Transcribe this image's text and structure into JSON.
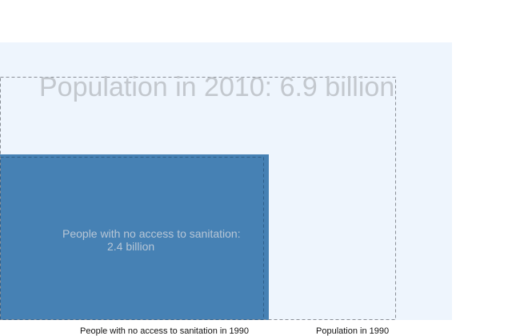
{
  "chart_data": {
    "type": "area",
    "title": "Population in 2010: 6.9 billion",
    "areas": [
      {
        "name": "Population in 2010",
        "value": 6.9,
        "unit": "billion",
        "color": "#eef5fd"
      },
      {
        "name": "Population in 1990",
        "value": 5.3,
        "unit": "billion",
        "style": "dashed-outline"
      },
      {
        "name": "People with no access to sanitation in 2010",
        "value": 2.4,
        "unit": "billion",
        "color": "#4681b4"
      },
      {
        "name": "People with no access to sanitation in 1990",
        "value": 2.7,
        "unit": "billion",
        "style": "dashed-outline"
      }
    ],
    "labels": {
      "inner_line1": "People with no access to sanitation:",
      "inner_line2": "2.4 billion",
      "foot_sanitation_1990": "People with no access to sanitation in 1990",
      "foot_population_1990": "Population in 1990"
    }
  }
}
